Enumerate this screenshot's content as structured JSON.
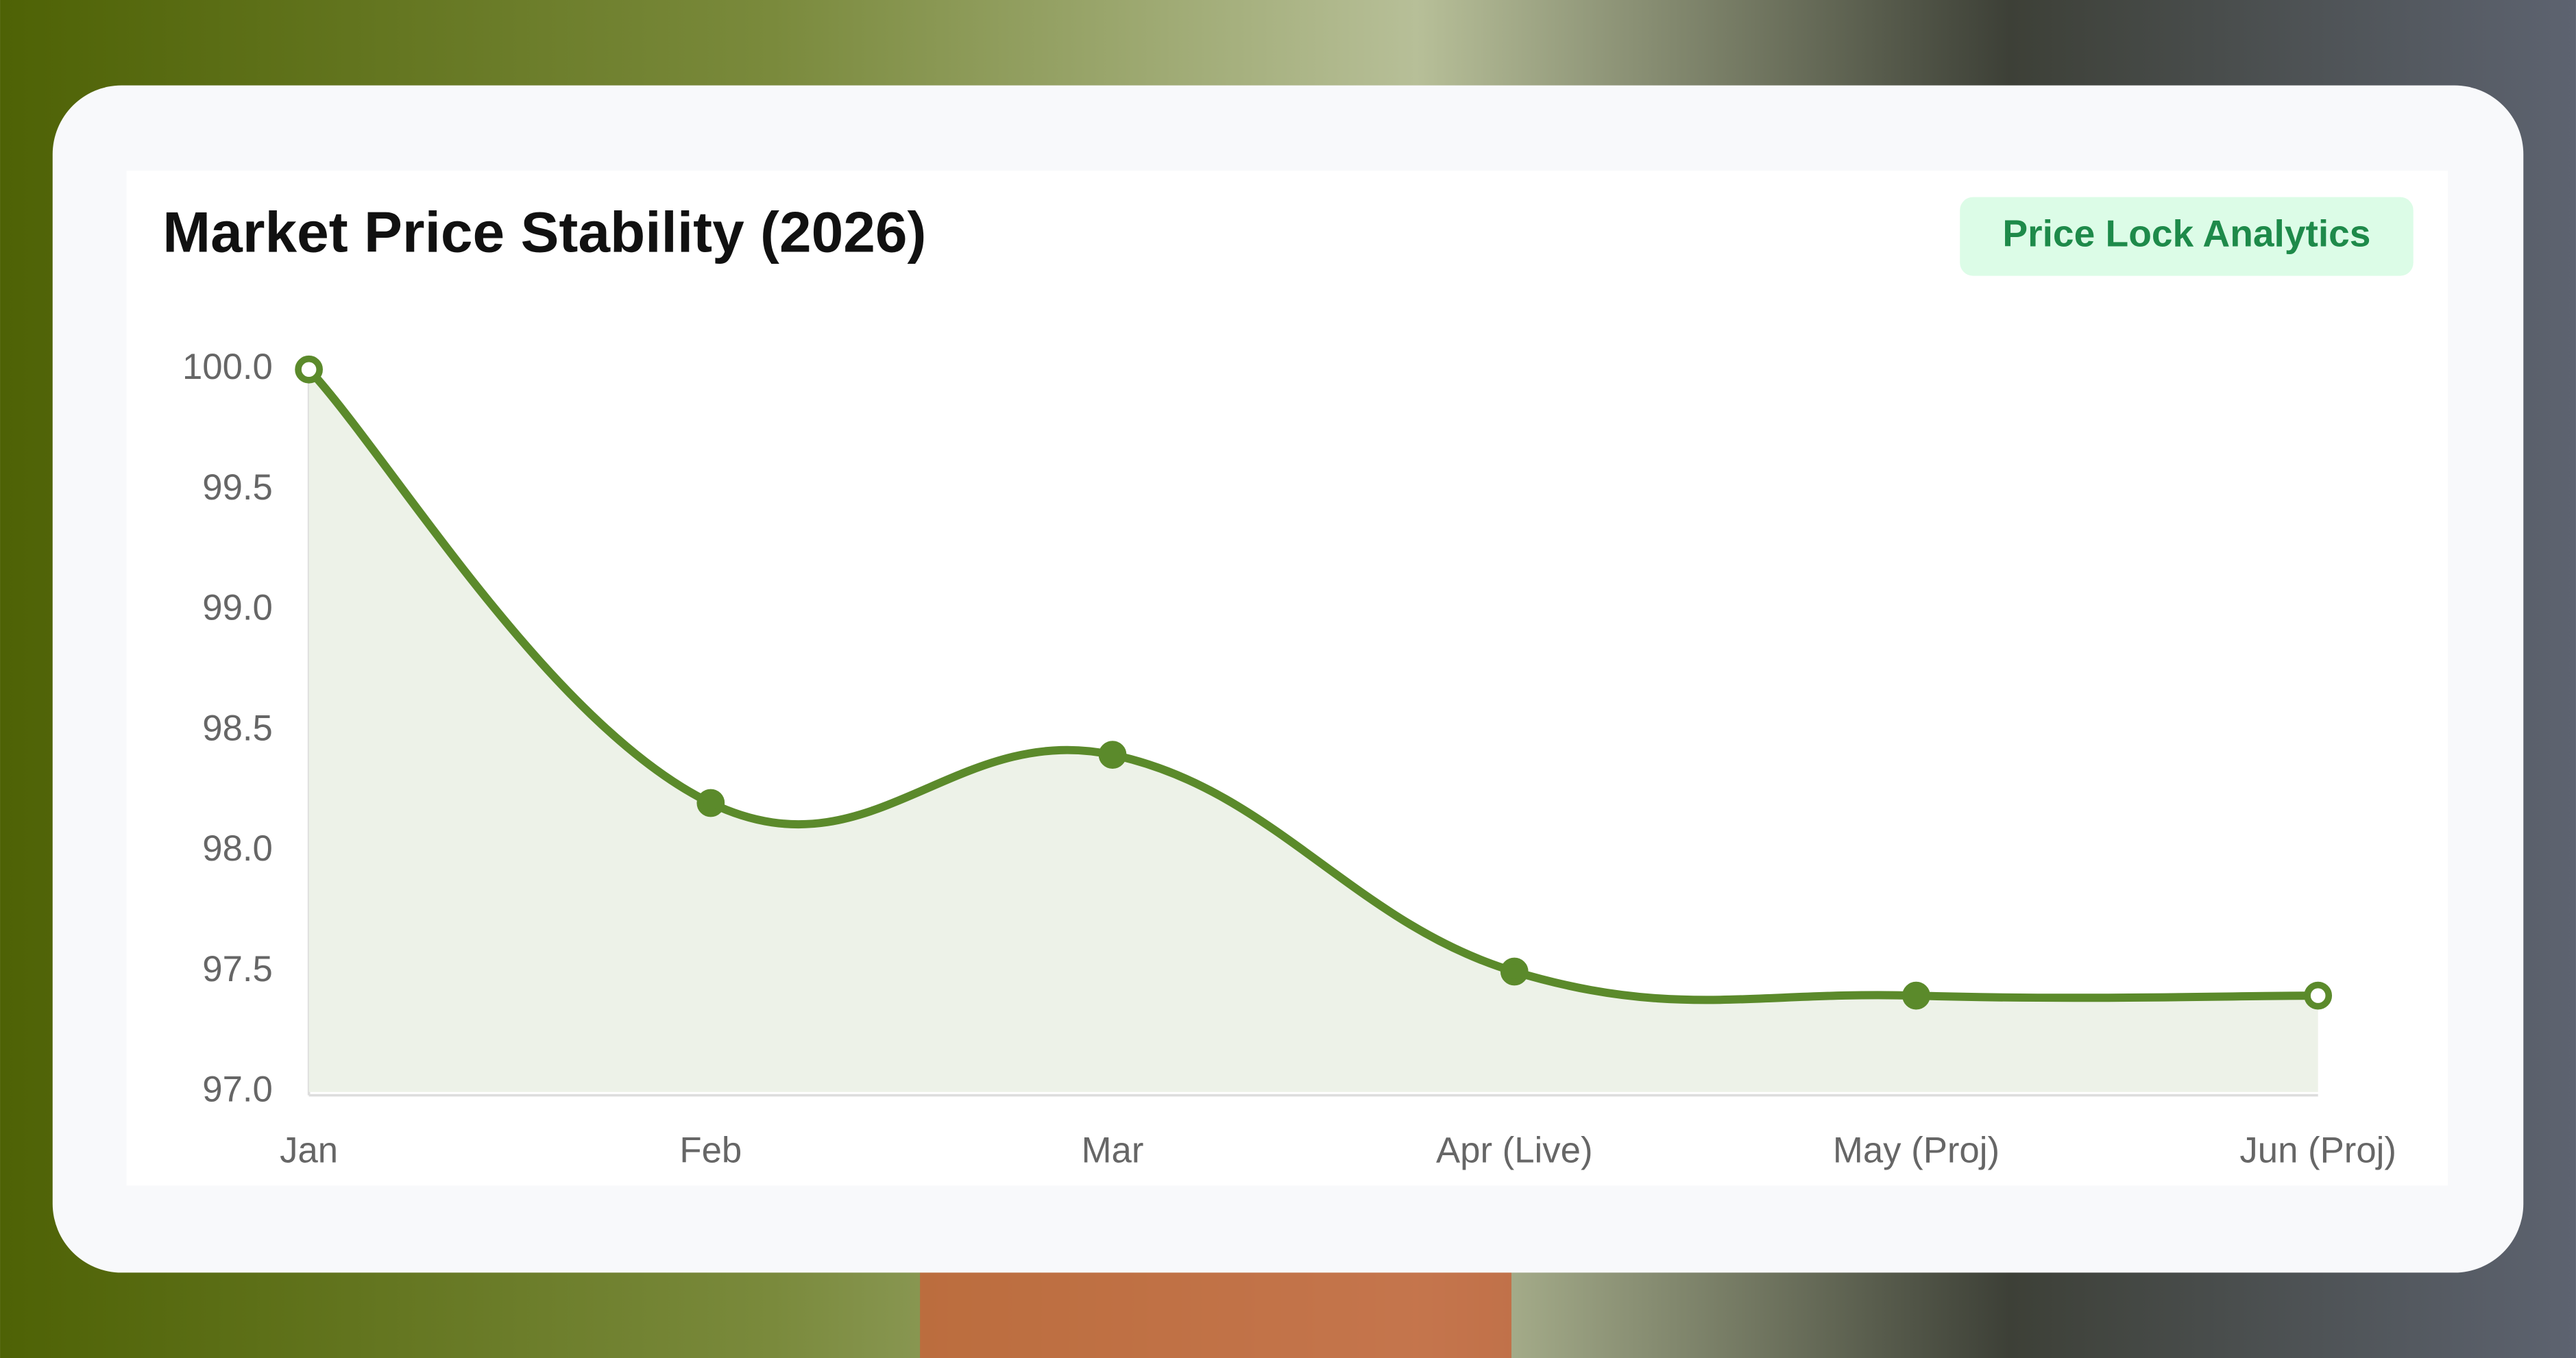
{
  "header": {
    "title": "Market Price Stability (2026)",
    "badge": "Price Lock Analytics"
  },
  "chart_data": {
    "type": "line",
    "categories": [
      "Jan",
      "Feb",
      "Mar",
      "Apr (Live)",
      "May (Proj)",
      "Jun (Proj)"
    ],
    "values": [
      100.0,
      98.2,
      98.4,
      97.5,
      97.4,
      97.4
    ],
    "color": "#5b8a2b",
    "fill": "#edf2e8",
    "smooth": true,
    "grid": false,
    "ylim": [
      97.0,
      100.0
    ],
    "yticks": [
      {
        "value": 97,
        "label": "97.0"
      },
      {
        "value": 97.5,
        "label": "97.5"
      },
      {
        "value": 98,
        "label": "98.0"
      },
      {
        "value": 98.5,
        "label": "98.5"
      },
      {
        "value": 99,
        "label": "99.0"
      },
      {
        "value": 99.5,
        "label": "99.5"
      },
      {
        "value": 100,
        "label": "100.0"
      }
    ]
  }
}
